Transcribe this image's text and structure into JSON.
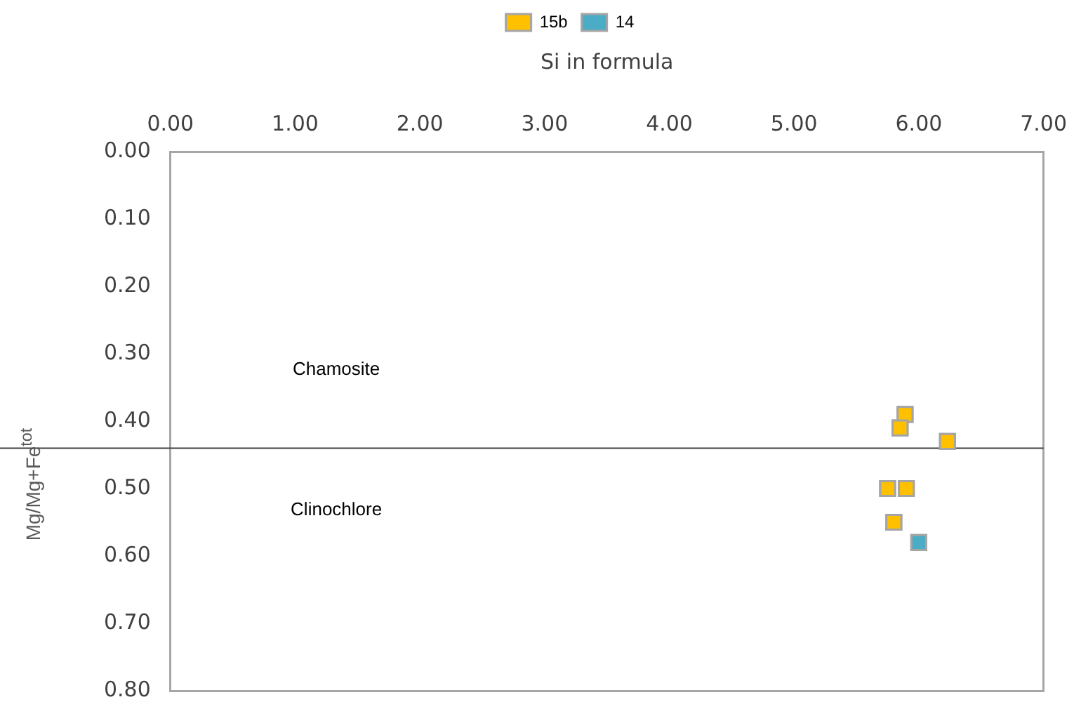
{
  "chart_data": {
    "type": "scatter",
    "xlabel": "Si in formula",
    "ylabel": "Mg/Mg+Fe$^{tot}$",
    "series": [
      {
        "name": "15b",
        "color": "#ffc000",
        "x": [
          5.89,
          5.85,
          6.23,
          5.75,
          5.9,
          5.8
        ],
        "values": [
          0.39,
          0.41,
          0.43,
          0.5,
          0.5,
          0.55
        ]
      },
      {
        "name": "14",
        "color": "#4bacc6",
        "x": [
          6.0
        ],
        "values": [
          0.58
        ]
      }
    ],
    "xlim": [
      0,
      7
    ],
    "xticks": [
      {
        "value": 0,
        "label": "0.00"
      },
      {
        "value": 1,
        "label": "1.00"
      },
      {
        "value": 2,
        "label": "2.00"
      },
      {
        "value": 3,
        "label": "3.00"
      },
      {
        "value": 4,
        "label": "4.00"
      },
      {
        "value": 5,
        "label": "5.00"
      },
      {
        "value": 6,
        "label": "6.00"
      },
      {
        "value": 7,
        "label": "7.00"
      }
    ],
    "ylim": [
      0.8,
      0
    ],
    "yticks": [
      {
        "value": 0,
        "label": "0.00"
      },
      {
        "value": 0.1,
        "label": "0.10"
      },
      {
        "value": 0.2,
        "label": "0.20"
      },
      {
        "value": 0.3,
        "label": "0.30"
      },
      {
        "value": 0.4,
        "label": "0.40"
      },
      {
        "value": 0.5,
        "label": "0.50"
      },
      {
        "value": 0.6,
        "label": "0.60"
      },
      {
        "value": 0.7,
        "label": "0.70"
      },
      {
        "value": 0.8,
        "label": "0.80"
      }
    ],
    "ref_lines": [
      {
        "axis": "y",
        "value": 0.44,
        "color": "#404040"
      }
    ],
    "annotations": [
      "Chamosite",
      "Clinochlore"
    ],
    "grid": false,
    "legend": "top",
    "marker": "square"
  }
}
